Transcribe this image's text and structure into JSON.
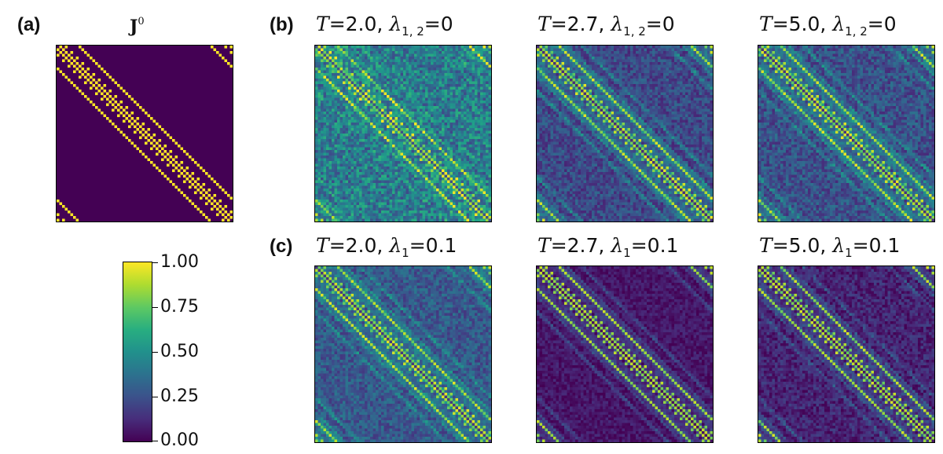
{
  "panel_labels": {
    "a": "(a)",
    "b": "(b)",
    "c": "(c)"
  },
  "colorbar": {
    "ticks": [
      "1.00",
      "0.75",
      "0.50",
      "0.25",
      "0.00"
    ],
    "colormap": "viridis",
    "range": [
      0,
      1
    ]
  },
  "colors": {
    "low": "#440154",
    "high": "#fde725"
  },
  "chart_data": [
    {
      "type": "heatmap",
      "id": "a",
      "title": "J",
      "title_superscript": "0",
      "matrix_size": 64,
      "range": [
        0,
        1
      ],
      "structure": "sparse near-diagonal bands (|i-j| = 1, 3, 8 and periodic wrap), values 1 on bands, 0 elsewhere",
      "background": 0.0,
      "noise": 0.0
    },
    {
      "type": "heatmap",
      "id": "b1",
      "title": {
        "T": "2.0",
        "lambda_sub": "1, 2",
        "lambda_val": "0"
      },
      "matrix_size": 64,
      "range": [
        0,
        1
      ],
      "background": 0.42,
      "noise": 0.2
    },
    {
      "type": "heatmap",
      "id": "b2",
      "title": {
        "T": "2.7",
        "lambda_sub": "1, 2",
        "lambda_val": "0"
      },
      "matrix_size": 64,
      "range": [
        0,
        1
      ],
      "background": 0.22,
      "noise": 0.12
    },
    {
      "type": "heatmap",
      "id": "b3",
      "title": {
        "T": "5.0",
        "lambda_sub": "1, 2",
        "lambda_val": "0"
      },
      "matrix_size": 64,
      "range": [
        0,
        1
      ],
      "background": 0.25,
      "noise": 0.13
    },
    {
      "type": "heatmap",
      "id": "c1",
      "title": {
        "T": "2.0",
        "lambda_sub": "1",
        "lambda_val": "0.1"
      },
      "matrix_size": 64,
      "range": [
        0,
        1
      ],
      "background": 0.28,
      "noise": 0.12
    },
    {
      "type": "heatmap",
      "id": "c2",
      "title": {
        "T": "2.7",
        "lambda_sub": "1",
        "lambda_val": "0.1"
      },
      "matrix_size": 64,
      "range": [
        0,
        1
      ],
      "background": 0.06,
      "noise": 0.07
    },
    {
      "type": "heatmap",
      "id": "c3",
      "title": {
        "T": "5.0",
        "lambda_sub": "1",
        "lambda_val": "0.1"
      },
      "matrix_size": 64,
      "range": [
        0,
        1
      ],
      "background": 0.1,
      "noise": 0.1
    }
  ]
}
